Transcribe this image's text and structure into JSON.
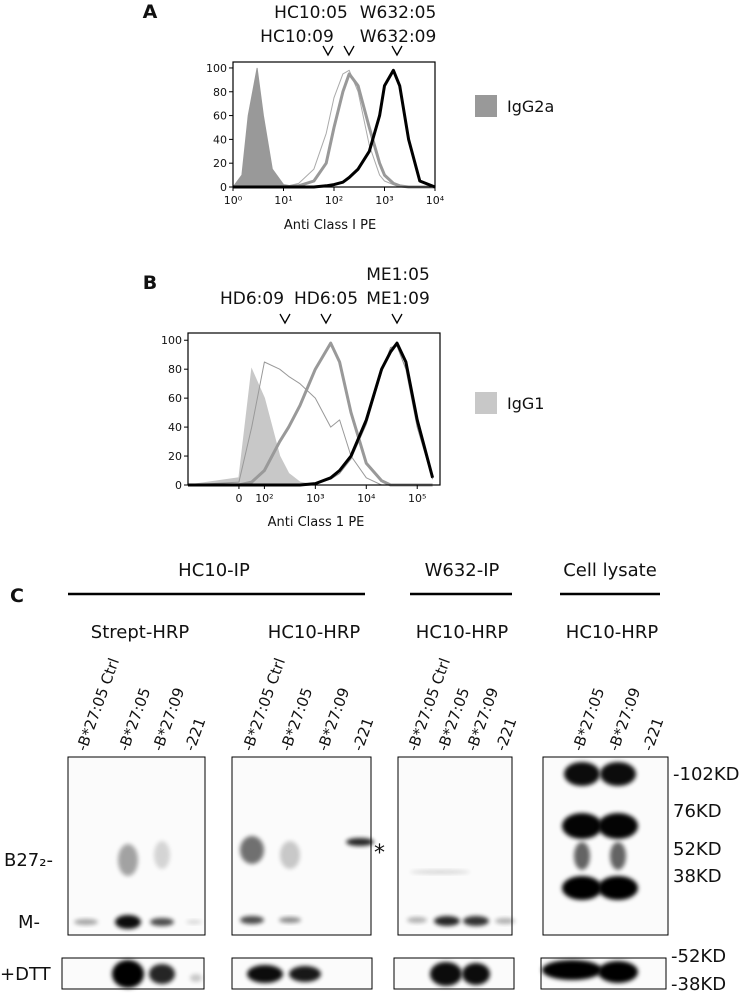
{
  "chart_data": [
    {
      "type": "line",
      "panel": "A",
      "xlabel": "Anti Class I PE",
      "xscale": "log",
      "xlim": [
        1,
        10000
      ],
      "xticks": [
        {
          "value": 1,
          "label": "10⁰"
        },
        {
          "value": 10,
          "label": "10¹"
        },
        {
          "value": 100,
          "label": "10²"
        },
        {
          "value": 1000,
          "label": "10³"
        },
        {
          "value": 10000,
          "label": "10⁴"
        }
      ],
      "ylim": [
        0,
        105
      ],
      "yticks": [
        0,
        20,
        40,
        60,
        80,
        100
      ],
      "annotations": [
        "HC10:05",
        "HC10:09",
        "W632:05",
        "W632:09"
      ],
      "legend": "right",
      "x": [
        1,
        1.5,
        2,
        3,
        4,
        6,
        10,
        20,
        40,
        70,
        100,
        150,
        200,
        300,
        500,
        800,
        1000,
        1500,
        2000,
        3000,
        5000,
        10000
      ],
      "series": [
        {
          "name": "IgG2a",
          "color": "#999999",
          "fill": true,
          "width": 1,
          "values": [
            0,
            10,
            60,
            100,
            60,
            15,
            2,
            0,
            0,
            0,
            0,
            0,
            0,
            0,
            0,
            0,
            0,
            0,
            0,
            0,
            0,
            0
          ]
        },
        {
          "color": "#aaaaaa",
          "width": 1,
          "values": [
            0,
            0,
            0,
            0,
            0,
            0,
            0,
            3,
            15,
            45,
            75,
            95,
            98,
            80,
            35,
            10,
            5,
            2,
            0,
            0,
            0,
            0
          ]
        },
        {
          "color": "#999999",
          "width": 3,
          "values": [
            0,
            0,
            0,
            0,
            0,
            0,
            0,
            1,
            5,
            20,
            50,
            80,
            95,
            85,
            50,
            20,
            10,
            3,
            1,
            0,
            0,
            0
          ]
        },
        {
          "color": "#000000",
          "width": 3,
          "values": [
            0,
            0,
            0,
            0,
            0,
            0,
            0,
            0,
            0,
            1,
            2,
            4,
            8,
            15,
            30,
            60,
            85,
            98,
            85,
            40,
            5,
            0
          ]
        }
      ]
    },
    {
      "type": "line",
      "panel": "B",
      "xlabel": "Anti Class 1 PE",
      "xscale": "symlog",
      "xlim": [
        -200,
        280000
      ],
      "xticks": [
        0,
        {
          "value": 100,
          "label": "10²"
        },
        {
          "value": 1000,
          "label": "10³"
        },
        {
          "value": 10000,
          "label": "10⁴"
        },
        {
          "value": 100000,
          "label": "10⁵"
        }
      ],
      "ylim": [
        0,
        105
      ],
      "yticks": [
        0,
        20,
        40,
        60,
        80,
        100
      ],
      "annotations": [
        "HD6:09",
        "HD6:05",
        "ME1:05",
        "ME1:09"
      ],
      "legend": "right",
      "x": [
        -200,
        0,
        50,
        100,
        200,
        300,
        500,
        1000,
        2000,
        3000,
        5000,
        10000,
        20000,
        30000,
        40000,
        60000,
        100000,
        200000
      ],
      "series": [
        {
          "name": "IgG1",
          "color": "#c8c8c8",
          "fill": true,
          "width": 1,
          "values": [
            0,
            5,
            80,
            60,
            20,
            8,
            2,
            0,
            0,
            0,
            0,
            0,
            0,
            0,
            0,
            0,
            0,
            0
          ]
        },
        {
          "color": "#999999",
          "width": 1,
          "values": [
            0,
            2,
            40,
            85,
            80,
            75,
            70,
            60,
            40,
            45,
            20,
            5,
            0,
            0,
            0,
            0,
            0,
            0
          ]
        },
        {
          "color": "#999999",
          "width": 3,
          "values": [
            0,
            0,
            2,
            10,
            30,
            40,
            55,
            80,
            98,
            85,
            50,
            15,
            3,
            0,
            0,
            0,
            0,
            0
          ]
        },
        {
          "color": "#888888",
          "width": 1,
          "values": [
            0,
            0,
            0,
            0,
            0,
            0,
            0,
            1,
            4,
            8,
            18,
            42,
            78,
            95,
            96,
            80,
            40,
            4
          ]
        },
        {
          "color": "#000000",
          "width": 3,
          "values": [
            0,
            0,
            0,
            0,
            0,
            0,
            0,
            1,
            5,
            10,
            20,
            45,
            80,
            92,
            98,
            85,
            45,
            5
          ]
        }
      ]
    }
  ],
  "panel_c": {
    "label": "C",
    "groups": [
      "HC10-IP",
      "W632-IP",
      "Cell lysate"
    ],
    "blots": [
      {
        "probe": "Strept-HRP",
        "lanes": [
          "-B*27:05 Ctrl",
          "-B*27:05",
          "-B*27:09",
          "-221"
        ]
      },
      {
        "probe": "HC10-HRP",
        "lanes": [
          "-B*27:05 Ctrl",
          "-B*27:05",
          "-B*27:09",
          "-221"
        ]
      },
      {
        "probe": "HC10-HRP",
        "lanes": [
          "-B*27:05 Ctrl",
          "-B*27:05",
          "-B*27:09",
          "-221"
        ]
      },
      {
        "probe": "HC10-HRP",
        "lanes": [
          "-B*27:05",
          "-B*27:09",
          "-221"
        ]
      }
    ],
    "rows": [
      "B27₂-",
      "M-",
      "+DTT"
    ],
    "markers": [
      "-102KD",
      "76KD",
      "52KD",
      "38KD"
    ],
    "dtt_markers": [
      "-52KD",
      "-38KD"
    ],
    "asterisk": "*"
  }
}
